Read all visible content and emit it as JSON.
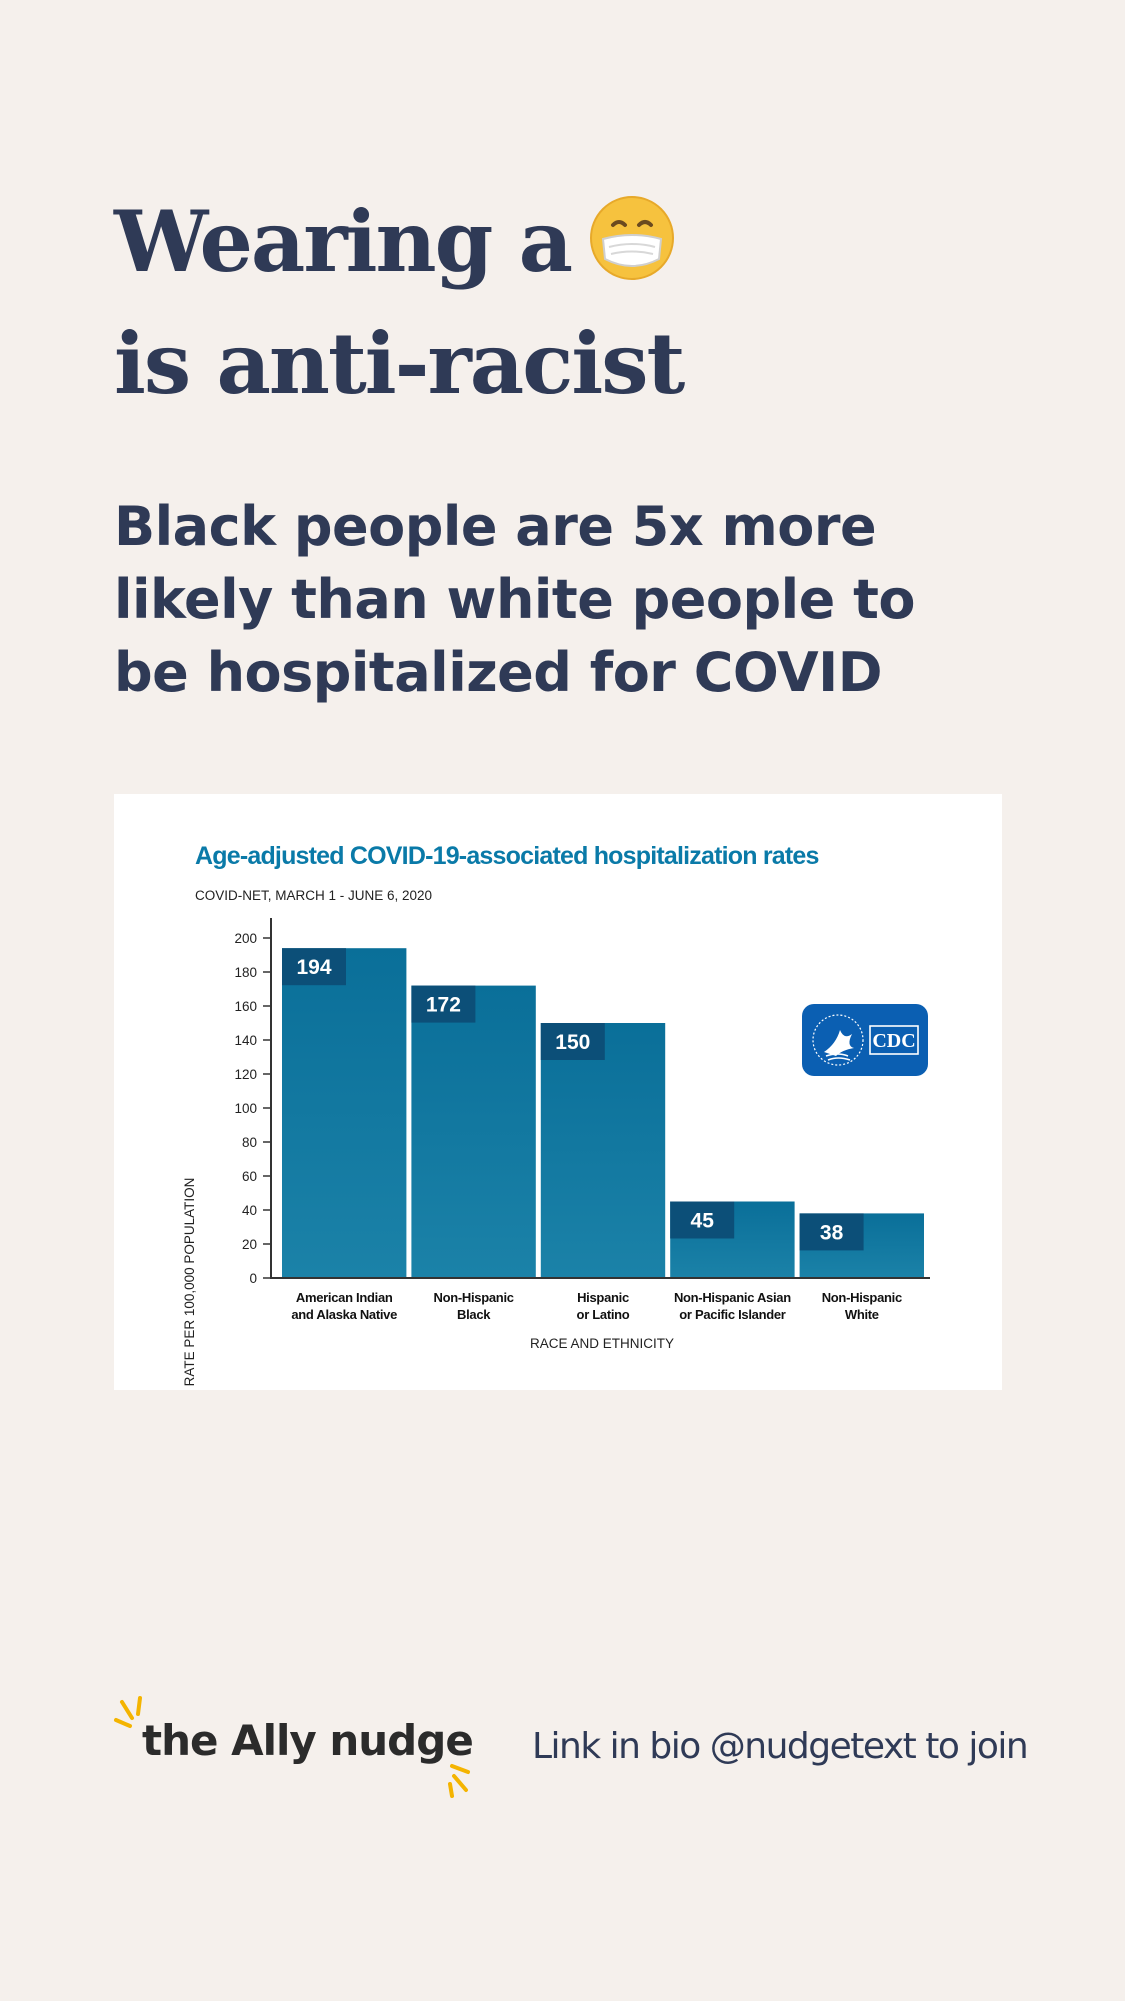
{
  "headline": {
    "line1": "Wearing a",
    "emoji": "face-with-medical-mask",
    "line2": "is anti-racist"
  },
  "subhead": "Black people are 5x more likely than white people to be hospitalized for COVID",
  "chart_data": {
    "type": "bar",
    "title": "Age-adjusted COVID-19-associated hospitalization rates",
    "subtitle": "COVID-NET, MARCH 1 - JUNE 6, 2020",
    "xlabel": "RACE AND ETHNICITY",
    "ylabel": "RATE PER 100,000 POPULATION",
    "ylim": [
      0,
      200
    ],
    "yticks": [
      0,
      20,
      40,
      60,
      80,
      100,
      120,
      140,
      160,
      180,
      200
    ],
    "categories": [
      [
        "American Indian",
        "and Alaska Native"
      ],
      [
        "Non-Hispanic",
        "Black"
      ],
      [
        "Hispanic",
        "or Latino"
      ],
      [
        "Non-Hispanic Asian",
        "or Pacific Islander"
      ],
      [
        "Non-Hispanic",
        "White"
      ]
    ],
    "values": [
      194,
      172,
      150,
      45,
      38
    ],
    "grid": false,
    "colors": {
      "bar_top": "#0a6f99",
      "bar_bottom": "#1b82a8",
      "label_box": "#0c4f78",
      "title": "#0a7aa8",
      "axis": "#333333"
    },
    "logo_text": "CDC"
  },
  "footer": {
    "brand": "the Ally nudge",
    "cta": "Link in bio @nudgetext to join",
    "accent": "#f4b400"
  }
}
